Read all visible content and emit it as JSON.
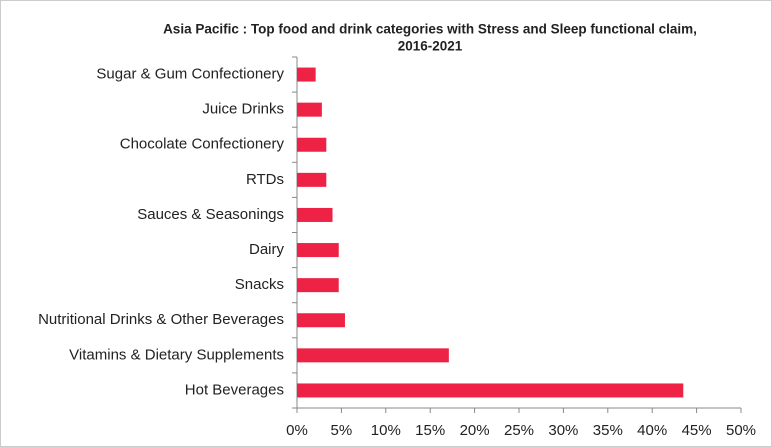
{
  "chart_data": {
    "type": "horizontal-bar",
    "title": [
      "Asia Pacific : Top food and drink categories with Stress and Sleep functional claim,",
      "2016-2021"
    ],
    "categories": [
      "Sugar & Gum Confectionery",
      "Juice Drinks",
      "Chocolate Confectionery",
      "RTDs",
      "Sauces & Seasonings",
      "Dairy",
      "Snacks",
      "Nutritional Drinks & Other Beverages",
      "Vitamins & Dietary Supplements",
      "Hot Beverages"
    ],
    "values": [
      2.1,
      2.8,
      3.3,
      3.3,
      4.0,
      4.7,
      4.7,
      5.4,
      17.1,
      43.5
    ],
    "color": "#ee2244",
    "xlim": [
      0,
      50
    ],
    "xticks": [
      {
        "value": 0,
        "label": "0%"
      },
      {
        "value": 5,
        "label": "5%"
      },
      {
        "value": 10,
        "label": "10%"
      },
      {
        "value": 15,
        "label": "15%"
      },
      {
        "value": 20,
        "label": "20%"
      },
      {
        "value": 25,
        "label": "25%"
      },
      {
        "value": 30,
        "label": "30%"
      },
      {
        "value": 35,
        "label": "35%"
      },
      {
        "value": 40,
        "label": "40%"
      },
      {
        "value": 45,
        "label": "45%"
      },
      {
        "value": 50,
        "label": "50%"
      }
    ],
    "grid": false
  }
}
